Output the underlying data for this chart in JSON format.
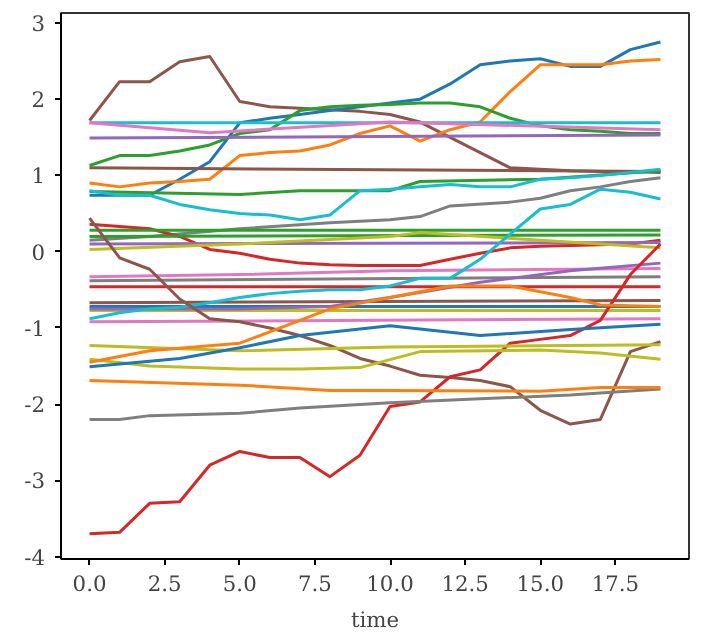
{
  "chart_data": {
    "type": "line",
    "xlabel": "time",
    "x": [
      0,
      1,
      2,
      3,
      4,
      5,
      6,
      7,
      8,
      9,
      10,
      11,
      12,
      13,
      14,
      15,
      16,
      17,
      18,
      19
    ],
    "xlim": [
      -0.95,
      19.95
    ],
    "ylim": [
      -4.03,
      3.13
    ],
    "xticks": [
      {
        "value": 0,
        "label": "0.0"
      },
      {
        "value": 2.5,
        "label": "2.5"
      },
      {
        "value": 5,
        "label": "5.0"
      },
      {
        "value": 7.5,
        "label": "7.5"
      },
      {
        "value": 10,
        "label": "10.0"
      },
      {
        "value": 12.5,
        "label": "12.5"
      },
      {
        "value": 15,
        "label": "15.0"
      },
      {
        "value": 17.5,
        "label": "17.5"
      }
    ],
    "yticks": [
      -4,
      -3,
      -2,
      -1,
      0,
      1,
      2,
      3
    ],
    "grid": false,
    "marker": "none",
    "line_style": "solid",
    "series": [
      {
        "color": "#8c564b",
        "values": [
          1.72,
          2.23,
          2.23,
          2.49,
          2.56,
          1.97,
          1.9,
          1.88,
          1.86,
          1.84,
          1.8,
          1.7,
          1.5,
          1.3,
          1.1,
          1.08,
          1.06,
          1.05,
          1.05,
          1.04
        ]
      },
      {
        "color": "#1f77b4",
        "values": [
          0.74,
          0.74,
          0.74,
          0.95,
          1.18,
          1.69,
          1.75,
          1.8,
          1.85,
          1.9,
          1.95,
          2.0,
          2.2,
          2.45,
          2.5,
          2.53,
          2.43,
          2.43,
          2.65,
          2.75
        ]
      },
      {
        "color": "#ff7f0e",
        "values": [
          0.9,
          0.85,
          0.9,
          0.92,
          0.95,
          1.26,
          1.3,
          1.32,
          1.4,
          1.55,
          1.65,
          1.45,
          1.6,
          1.7,
          2.1,
          2.45,
          2.45,
          2.45,
          2.5,
          2.52
        ]
      },
      {
        "color": "#2ca02c",
        "values": [
          1.13,
          1.26,
          1.26,
          1.32,
          1.4,
          1.55,
          1.6,
          1.85,
          1.9,
          1.92,
          1.93,
          1.95,
          1.95,
          1.9,
          1.75,
          1.65,
          1.6,
          1.58,
          1.55,
          1.55
        ]
      },
      {
        "color": "#17becf",
        "x": [
          0,
          19
        ],
        "values": [
          1.69,
          1.69
        ]
      },
      {
        "color": "#e377c2",
        "x": [
          0,
          4,
          10,
          19
        ],
        "values": [
          1.69,
          1.56,
          1.7,
          1.6
        ]
      },
      {
        "color": "#9467bd",
        "x": [
          0,
          19
        ],
        "values": [
          1.49,
          1.53
        ]
      },
      {
        "color": "#8c564b",
        "x": [
          0,
          19
        ],
        "values": [
          1.1,
          1.05
        ]
      },
      {
        "color": "#2ca02c",
        "x": [
          0,
          5,
          7,
          10,
          11,
          15,
          19
        ],
        "values": [
          0.79,
          0.75,
          0.8,
          0.8,
          0.92,
          0.95,
          1.06
        ]
      },
      {
        "color": "#17becf",
        "values": [
          0.8,
          0.74,
          0.74,
          0.62,
          0.55,
          0.5,
          0.48,
          0.42,
          0.48,
          0.8,
          0.82,
          0.85,
          0.88,
          0.85,
          0.85,
          0.95,
          0.97,
          1.0,
          1.04,
          1.08
        ]
      },
      {
        "color": "#7f7f7f",
        "x": [
          0,
          2,
          5,
          8,
          10,
          11,
          12,
          14,
          15,
          16,
          17,
          18,
          19
        ],
        "values": [
          0.15,
          0.2,
          0.3,
          0.38,
          0.42,
          0.46,
          0.6,
          0.65,
          0.7,
          0.8,
          0.85,
          0.92,
          0.97
        ]
      },
      {
        "color": "#d62728",
        "values": [
          0.36,
          0.33,
          0.3,
          0.2,
          0.03,
          -0.02,
          -0.1,
          -0.15,
          -0.17,
          -0.18,
          -0.18,
          -0.18,
          -0.1,
          -0.02,
          0.05,
          0.07,
          0.08,
          0.09,
          0.1,
          0.15
        ]
      },
      {
        "color": "#2ca02c",
        "x": [
          0,
          19
        ],
        "values": [
          0.28,
          0.28
        ]
      },
      {
        "color": "#2ca02c",
        "x": [
          0,
          19
        ],
        "values": [
          0.2,
          0.22
        ]
      },
      {
        "color": "#9467bd",
        "x": [
          0,
          19
        ],
        "values": [
          0.1,
          0.12
        ]
      },
      {
        "color": "#bcbd22",
        "x": [
          0,
          5,
          10,
          11,
          15,
          19
        ],
        "values": [
          0.03,
          0.1,
          0.2,
          0.25,
          0.15,
          0.05
        ]
      },
      {
        "color": "#e377c2",
        "x": [
          0,
          5,
          10,
          19
        ],
        "values": [
          -0.33,
          -0.3,
          -0.25,
          -0.22
        ]
      },
      {
        "color": "#7f7f7f",
        "x": [
          0,
          19
        ],
        "values": [
          -0.38,
          -0.33
        ]
      },
      {
        "color": "#d62728",
        "x": [
          0,
          19
        ],
        "values": [
          -0.46,
          -0.46
        ]
      },
      {
        "color": "#8c564b",
        "x": [
          0,
          19
        ],
        "values": [
          -0.67,
          -0.64
        ]
      },
      {
        "color": "#bcbd22",
        "x": [
          0,
          19
        ],
        "values": [
          -0.77,
          -0.77
        ]
      },
      {
        "color": "#1f77b4",
        "x": [
          0,
          19
        ],
        "values": [
          -0.72,
          -0.72
        ]
      },
      {
        "color": "#9467bd",
        "x": [
          0,
          5,
          8,
          10,
          13,
          16,
          19
        ],
        "values": [
          -0.75,
          -0.75,
          -0.72,
          -0.6,
          -0.4,
          -0.25,
          -0.15
        ]
      },
      {
        "color": "#17becf",
        "values": [
          -0.88,
          -0.8,
          -0.75,
          -0.73,
          -0.67,
          -0.6,
          -0.55,
          -0.52,
          -0.5,
          -0.5,
          -0.45,
          -0.35,
          -0.35,
          -0.1,
          0.23,
          0.56,
          0.62,
          0.82,
          0.78,
          0.69
        ]
      },
      {
        "color": "#e377c2",
        "x": [
          0,
          19
        ],
        "values": [
          -0.92,
          -0.88
        ]
      },
      {
        "color": "#8c564b",
        "values": [
          0.44,
          -0.08,
          -0.23,
          -0.62,
          -0.88,
          -0.92,
          -1.0,
          -1.1,
          -1.23,
          -1.4,
          -1.5,
          -1.62,
          -1.65,
          -1.69,
          -1.77,
          -2.08,
          -2.26,
          -2.2,
          -1.31,
          -1.18
        ]
      },
      {
        "color": "#d62728",
        "values": [
          -3.7,
          -3.68,
          -3.3,
          -3.28,
          -2.8,
          -2.62,
          -2.7,
          -2.7,
          -2.95,
          -2.67,
          -2.03,
          -1.97,
          -1.64,
          -1.55,
          -1.2,
          -1.15,
          -1.1,
          -0.9,
          -0.3,
          0.1
        ]
      },
      {
        "color": "#7f7f7f",
        "x": [
          0,
          1,
          2,
          5,
          7,
          10,
          13,
          16,
          19
        ],
        "values": [
          -2.2,
          -2.2,
          -2.15,
          -2.12,
          -2.05,
          -1.98,
          -1.93,
          -1.88,
          -1.8
        ]
      },
      {
        "color": "#ff7f0e",
        "x": [
          0,
          5,
          8,
          10,
          15,
          17,
          19
        ],
        "values": [
          -1.69,
          -1.75,
          -1.82,
          -1.82,
          -1.83,
          -1.78,
          -1.78
        ]
      },
      {
        "color": "#bcbd22",
        "x": [
          0,
          2,
          5,
          7,
          9,
          11,
          15,
          17,
          19
        ],
        "values": [
          -1.41,
          -1.5,
          -1.54,
          -1.54,
          -1.52,
          -1.31,
          -1.29,
          -1.33,
          -1.41
        ]
      },
      {
        "color": "#bcbd22",
        "x": [
          0,
          5,
          10,
          19
        ],
        "values": [
          -1.23,
          -1.3,
          -1.25,
          -1.22
        ]
      },
      {
        "color": "#ff7f0e",
        "x": [
          0,
          2,
          5,
          7,
          8,
          10,
          12,
          14,
          16,
          17,
          19
        ],
        "values": [
          -1.45,
          -1.3,
          -1.2,
          -0.9,
          -0.75,
          -0.6,
          -0.45,
          -0.45,
          -0.6,
          -0.7,
          -0.72
        ]
      },
      {
        "color": "#1f77b4",
        "x": [
          0,
          3,
          5,
          7,
          10,
          13,
          16,
          19
        ],
        "values": [
          -1.51,
          -1.4,
          -1.26,
          -1.1,
          -0.97,
          -1.1,
          -1.02,
          -0.95
        ]
      }
    ]
  }
}
